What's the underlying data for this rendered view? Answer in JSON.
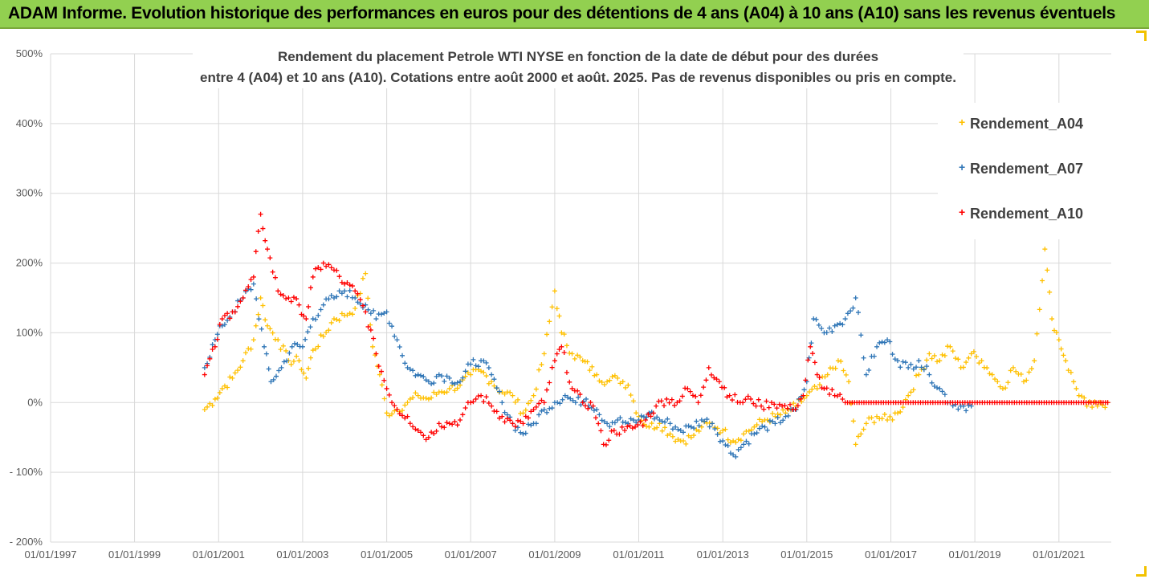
{
  "banner": {
    "title": "ADAM Informe. Evolution historique des performances en euros pour des détentions de 4 ans (A04) à 10 ans (A10) sans les revenus éventuels"
  },
  "colors": {
    "banner_bg": "#92d050",
    "A04": "#ffc000",
    "A07": "#2e75b6",
    "A10": "#ff0000",
    "gridline": "#d9d9d9",
    "axis_text": "#595959"
  },
  "chart_data": {
    "type": "scatter",
    "title_line1": "Rendement du placement Petrole WTI NYSE en fonction de la date de début pour des durées",
    "title_line2": "entre 4 (A04) et 10 ans (A10). Cotations entre août 2000 et août. 2025. Pas de revenus disponibles ou pris en compte.",
    "marker": "+",
    "legend_position": "top-right",
    "grid": "vertical and horizontal",
    "x_axis": {
      "type": "date",
      "range": [
        "1997-01-01",
        "2022-04-01"
      ],
      "ticks": [
        "01/01/1997",
        "01/01/1999",
        "01/01/2001",
        "01/01/2003",
        "01/01/2005",
        "01/01/2007",
        "01/01/2009",
        "01/01/2011",
        "01/01/2013",
        "01/01/2015",
        "01/01/2017",
        "01/01/2019",
        "01/01/2021"
      ]
    },
    "y_axis": {
      "range": [
        -200,
        500
      ],
      "unit": "%",
      "ticks": [
        "500%",
        "400%",
        "300%",
        "200%",
        "100%",
        "0%",
        "- 100%",
        "- 200%"
      ],
      "tick_values": [
        500,
        400,
        300,
        200,
        100,
        0,
        -100,
        -200
      ]
    },
    "series": [
      {
        "name": "Rendement_A04",
        "color": "#ffc000",
        "points": [
          [
            "2000-09-01",
            -10
          ],
          [
            "2000-12-01",
            5
          ],
          [
            "2001-02-01",
            20
          ],
          [
            "2001-05-01",
            35
          ],
          [
            "2001-08-01",
            60
          ],
          [
            "2001-11-01",
            90
          ],
          [
            "2002-01-01",
            150
          ],
          [
            "2002-03-01",
            110
          ],
          [
            "2002-06-01",
            90
          ],
          [
            "2002-09-01",
            60
          ],
          [
            "2002-12-01",
            60
          ],
          [
            "2003-02-01",
            35
          ],
          [
            "2003-04-01",
            75
          ],
          [
            "2003-07-01",
            95
          ],
          [
            "2003-10-01",
            120
          ],
          [
            "2004-01-01",
            125
          ],
          [
            "2004-04-01",
            135
          ],
          [
            "2004-07-01",
            185
          ],
          [
            "2004-09-01",
            80
          ],
          [
            "2004-11-01",
            40
          ],
          [
            "2005-01-01",
            -15
          ],
          [
            "2005-04-01",
            -10
          ],
          [
            "2005-07-01",
            0
          ],
          [
            "2005-10-01",
            10
          ],
          [
            "2006-01-01",
            5
          ],
          [
            "2006-04-01",
            15
          ],
          [
            "2006-07-01",
            20
          ],
          [
            "2006-10-01",
            25
          ],
          [
            "2007-01-01",
            40
          ],
          [
            "2007-04-01",
            45
          ],
          [
            "2007-07-01",
            30
          ],
          [
            "2007-10-01",
            15
          ],
          [
            "2008-01-01",
            10
          ],
          [
            "2008-04-01",
            -15
          ],
          [
            "2008-07-01",
            10
          ],
          [
            "2008-10-01",
            70
          ],
          [
            "2009-01-01",
            160
          ],
          [
            "2009-03-01",
            100
          ],
          [
            "2009-06-01",
            70
          ],
          [
            "2009-09-01",
            60
          ],
          [
            "2010-01-01",
            40
          ],
          [
            "2010-04-01",
            30
          ],
          [
            "2010-07-01",
            35
          ],
          [
            "2010-10-01",
            25
          ],
          [
            "2011-01-01",
            -20
          ],
          [
            "2011-04-01",
            -35
          ],
          [
            "2011-07-01",
            -30
          ],
          [
            "2011-10-01",
            -45
          ],
          [
            "2012-01-01",
            -55
          ],
          [
            "2012-04-01",
            -50
          ],
          [
            "2012-07-01",
            -35
          ],
          [
            "2012-10-01",
            -30
          ],
          [
            "2013-01-01",
            -40
          ],
          [
            "2013-04-01",
            -55
          ],
          [
            "2013-07-01",
            -45
          ],
          [
            "2013-10-01",
            -35
          ],
          [
            "2014-01-01",
            -25
          ],
          [
            "2014-04-01",
            -20
          ],
          [
            "2014-07-01",
            -15
          ],
          [
            "2014-10-01",
            -5
          ],
          [
            "2015-01-01",
            10
          ],
          [
            "2015-04-01",
            20
          ],
          [
            "2015-07-01",
            40
          ],
          [
            "2015-10-01",
            60
          ],
          [
            "2016-01-01",
            30
          ],
          [
            "2016-03-01",
            -60
          ],
          [
            "2016-06-01",
            -30
          ],
          [
            "2016-09-01",
            -20
          ],
          [
            "2016-12-01",
            -25
          ],
          [
            "2017-03-01",
            -15
          ],
          [
            "2017-06-01",
            10
          ],
          [
            "2017-09-01",
            40
          ],
          [
            "2017-12-01",
            70
          ],
          [
            "2018-03-01",
            60
          ],
          [
            "2018-06-01",
            80
          ],
          [
            "2018-09-01",
            50
          ],
          [
            "2018-12-01",
            70
          ],
          [
            "2019-03-01",
            60
          ],
          [
            "2019-06-01",
            40
          ],
          [
            "2019-09-01",
            20
          ],
          [
            "2019-12-01",
            50
          ],
          [
            "2020-03-01",
            30
          ],
          [
            "2020-06-01",
            60
          ],
          [
            "2020-09-01",
            220
          ],
          [
            "2020-11-01",
            120
          ],
          [
            "2021-01-01",
            90
          ],
          [
            "2021-03-01",
            60
          ],
          [
            "2021-06-01",
            20
          ],
          [
            "2021-09-01",
            -5
          ],
          [
            "2021-12-01",
            -5
          ],
          [
            "2022-03-01",
            0
          ]
        ]
      },
      {
        "name": "Rendement_A07",
        "color": "#2e75b6",
        "points": [
          [
            "2000-09-01",
            50
          ],
          [
            "2000-12-01",
            90
          ],
          [
            "2001-02-01",
            110
          ],
          [
            "2001-05-01",
            130
          ],
          [
            "2001-08-01",
            150
          ],
          [
            "2001-11-01",
            170
          ],
          [
            "2002-02-01",
            80
          ],
          [
            "2002-04-01",
            30
          ],
          [
            "2002-07-01",
            50
          ],
          [
            "2002-10-01",
            80
          ],
          [
            "2003-01-01",
            80
          ],
          [
            "2003-04-01",
            120
          ],
          [
            "2003-07-01",
            140
          ],
          [
            "2003-10-01",
            150
          ],
          [
            "2004-01-01",
            160
          ],
          [
            "2004-04-01",
            150
          ],
          [
            "2004-07-01",
            140
          ],
          [
            "2004-10-01",
            120
          ],
          [
            "2005-01-01",
            130
          ],
          [
            "2005-04-01",
            90
          ],
          [
            "2005-07-01",
            50
          ],
          [
            "2005-10-01",
            40
          ],
          [
            "2006-01-01",
            30
          ],
          [
            "2006-04-01",
            40
          ],
          [
            "2006-07-01",
            35
          ],
          [
            "2006-10-01",
            30
          ],
          [
            "2007-01-01",
            55
          ],
          [
            "2007-04-01",
            60
          ],
          [
            "2007-07-01",
            40
          ],
          [
            "2007-10-01",
            0
          ],
          [
            "2008-01-01",
            -30
          ],
          [
            "2008-04-01",
            -45
          ],
          [
            "2008-07-01",
            -30
          ],
          [
            "2008-10-01",
            -10
          ],
          [
            "2009-01-01",
            0
          ],
          [
            "2009-04-01",
            10
          ],
          [
            "2009-07-01",
            0
          ],
          [
            "2009-10-01",
            5
          ],
          [
            "2010-01-01",
            -10
          ],
          [
            "2010-04-01",
            -30
          ],
          [
            "2010-07-01",
            -25
          ],
          [
            "2010-10-01",
            -30
          ],
          [
            "2011-01-01",
            -25
          ],
          [
            "2011-04-01",
            -15
          ],
          [
            "2011-07-01",
            -25
          ],
          [
            "2011-10-01",
            -30
          ],
          [
            "2012-01-01",
            -40
          ],
          [
            "2012-04-01",
            -35
          ],
          [
            "2012-07-01",
            -25
          ],
          [
            "2012-10-01",
            -30
          ],
          [
            "2013-01-01",
            -55
          ],
          [
            "2013-04-01",
            -75
          ],
          [
            "2013-07-01",
            -60
          ],
          [
            "2013-10-01",
            -45
          ],
          [
            "2014-01-01",
            -35
          ],
          [
            "2014-04-01",
            -30
          ],
          [
            "2014-07-01",
            -20
          ],
          [
            "2014-10-01",
            -10
          ],
          [
            "2015-01-01",
            30
          ],
          [
            "2015-03-01",
            120
          ],
          [
            "2015-06-01",
            100
          ],
          [
            "2015-09-01",
            110
          ],
          [
            "2015-12-01",
            120
          ],
          [
            "2016-03-01",
            150
          ],
          [
            "2016-06-01",
            40
          ],
          [
            "2016-09-01",
            80
          ],
          [
            "2016-12-01",
            90
          ],
          [
            "2017-03-01",
            60
          ],
          [
            "2017-06-01",
            50
          ],
          [
            "2017-09-01",
            60
          ],
          [
            "2017-12-01",
            40
          ],
          [
            "2018-03-01",
            20
          ],
          [
            "2018-06-01",
            0
          ],
          [
            "2018-09-01",
            -5
          ],
          [
            "2018-12-01",
            -5
          ]
        ]
      },
      {
        "name": "Rendement_A10",
        "color": "#ff0000",
        "points": [
          [
            "2000-09-01",
            40
          ],
          [
            "2000-12-01",
            80
          ],
          [
            "2001-02-01",
            120
          ],
          [
            "2001-05-01",
            130
          ],
          [
            "2001-08-01",
            150
          ],
          [
            "2001-11-01",
            180
          ],
          [
            "2002-01-01",
            270
          ],
          [
            "2002-03-01",
            220
          ],
          [
            "2002-06-01",
            160
          ],
          [
            "2002-09-01",
            150
          ],
          [
            "2002-12-01",
            140
          ],
          [
            "2003-02-01",
            120
          ],
          [
            "2003-04-01",
            180
          ],
          [
            "2003-07-01",
            200
          ],
          [
            "2003-10-01",
            190
          ],
          [
            "2004-01-01",
            170
          ],
          [
            "2004-04-01",
            160
          ],
          [
            "2004-07-01",
            130
          ],
          [
            "2004-10-01",
            70
          ],
          [
            "2005-01-01",
            20
          ],
          [
            "2005-04-01",
            -10
          ],
          [
            "2005-07-01",
            -20
          ],
          [
            "2005-10-01",
            -40
          ],
          [
            "2006-01-01",
            -50
          ],
          [
            "2006-04-01",
            -30
          ],
          [
            "2006-07-01",
            -30
          ],
          [
            "2006-10-01",
            -25
          ],
          [
            "2007-01-01",
            0
          ],
          [
            "2007-04-01",
            10
          ],
          [
            "2007-07-01",
            -5
          ],
          [
            "2007-10-01",
            -20
          ],
          [
            "2008-01-01",
            -30
          ],
          [
            "2008-04-01",
            -30
          ],
          [
            "2008-07-01",
            -10
          ],
          [
            "2008-10-01",
            0
          ],
          [
            "2009-01-01",
            60
          ],
          [
            "2009-03-01",
            80
          ],
          [
            "2009-06-01",
            20
          ],
          [
            "2009-09-01",
            0
          ],
          [
            "2009-12-01",
            -5
          ],
          [
            "2010-03-01",
            -60
          ],
          [
            "2010-06-01",
            -40
          ],
          [
            "2010-09-01",
            -40
          ],
          [
            "2010-12-01",
            -35
          ],
          [
            "2011-03-01",
            -25
          ],
          [
            "2011-06-01",
            -5
          ],
          [
            "2011-09-01",
            5
          ],
          [
            "2011-12-01",
            0
          ],
          [
            "2012-03-01",
            20
          ],
          [
            "2012-06-01",
            0
          ],
          [
            "2012-09-01",
            50
          ],
          [
            "2012-12-01",
            30
          ],
          [
            "2013-03-01",
            10
          ],
          [
            "2013-06-01",
            0
          ],
          [
            "2013-09-01",
            5
          ],
          [
            "2013-12-01",
            -5
          ],
          [
            "2014-03-01",
            0
          ],
          [
            "2014-06-01",
            -5
          ],
          [
            "2014-09-01",
            -10
          ],
          [
            "2014-12-01",
            10
          ],
          [
            "2015-02-01",
            80
          ],
          [
            "2015-04-01",
            40
          ],
          [
            "2015-06-01",
            20
          ],
          [
            "2015-09-01",
            10
          ],
          [
            "2015-12-01",
            0
          ],
          [
            "2016-06-01",
            0
          ],
          [
            "2017-01-01",
            0
          ],
          [
            "2017-06-01",
            0
          ],
          [
            "2018-01-01",
            0
          ],
          [
            "2018-06-01",
            0
          ],
          [
            "2019-01-01",
            0
          ],
          [
            "2019-06-01",
            0
          ],
          [
            "2020-01-01",
            0
          ],
          [
            "2020-06-01",
            0
          ],
          [
            "2021-01-01",
            0
          ],
          [
            "2021-06-01",
            0
          ],
          [
            "2022-01-01",
            0
          ],
          [
            "2022-03-01",
            0
          ]
        ]
      }
    ]
  }
}
